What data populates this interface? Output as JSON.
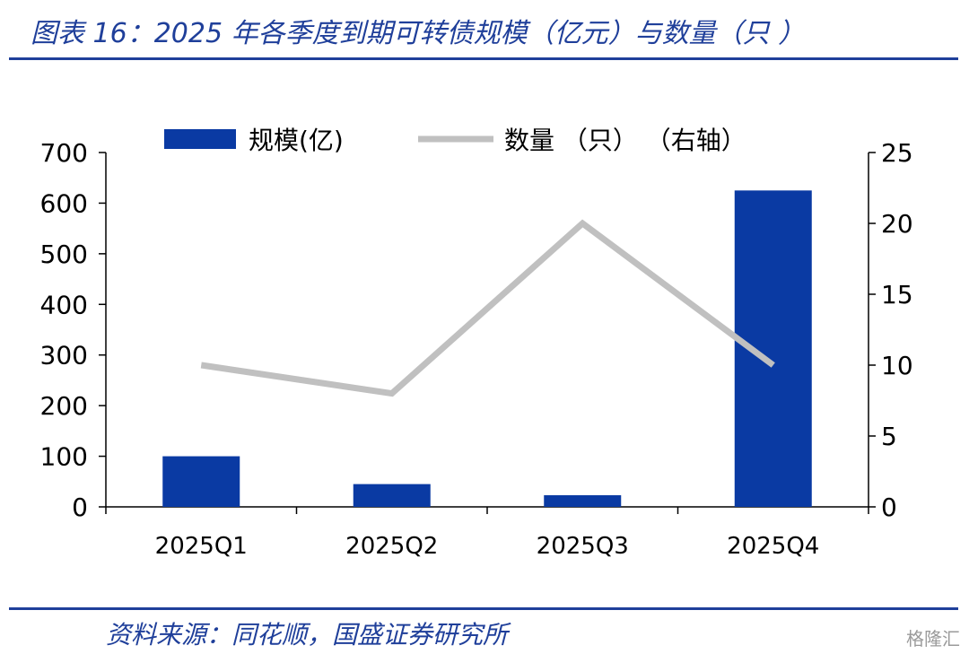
{
  "header": {
    "title": "图表 16：2025 年各季度到期可转债规模（亿元）与数量（只 ）"
  },
  "footer": {
    "source": "资料来源：同花顺，国盛证券研究所",
    "watermark": "格隆汇"
  },
  "colors": {
    "brand": "#1f3f9a",
    "bar": "#0a3aa3",
    "line": "#c0c0c0"
  },
  "chart_data": {
    "type": "bar",
    "categories": [
      "2025Q1",
      "2025Q2",
      "2025Q3",
      "2025Q4"
    ],
    "series": [
      {
        "name": "规模(亿)",
        "type": "bar",
        "axis": "left",
        "values": [
          100,
          45,
          23,
          625
        ]
      },
      {
        "name": "数量（只）（右轴）",
        "type": "line",
        "axis": "right",
        "values": [
          10,
          8,
          20,
          10
        ]
      }
    ],
    "legend_labels": [
      "规模(亿)",
      "数量 （只） （右轴）"
    ],
    "ylim_left": [
      0,
      700
    ],
    "yticks_left": [
      0,
      100,
      200,
      300,
      400,
      500,
      600,
      700
    ],
    "ylim_right": [
      0,
      25
    ],
    "yticks_right": [
      0,
      5,
      10,
      15,
      20,
      25
    ],
    "grid": false,
    "legend_position": "top"
  }
}
